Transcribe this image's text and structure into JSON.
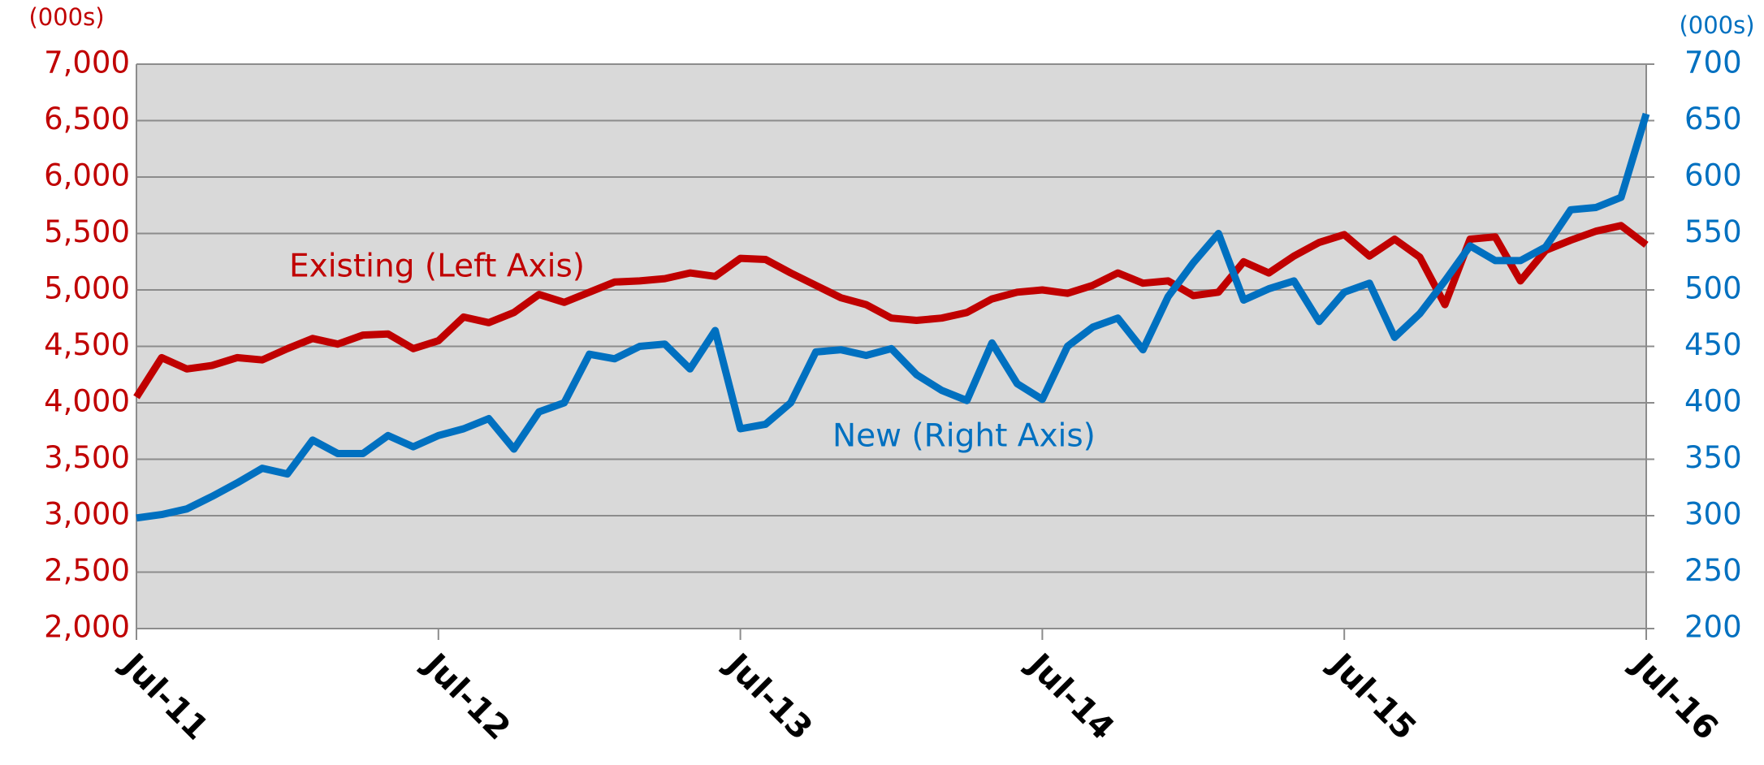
{
  "chart_data": {
    "type": "line",
    "y_unit_label": "(000s)",
    "y2_unit_label": "(000s)",
    "categories": [
      "Jul-11",
      null,
      null,
      null,
      null,
      null,
      null,
      null,
      null,
      null,
      null,
      null,
      "Jul-12",
      null,
      null,
      null,
      null,
      null,
      null,
      null,
      null,
      null,
      null,
      null,
      "Jul-13",
      null,
      null,
      null,
      null,
      null,
      null,
      null,
      null,
      null,
      null,
      null,
      "Jul-14",
      null,
      null,
      null,
      null,
      null,
      null,
      null,
      null,
      null,
      null,
      null,
      "Jul-15",
      null,
      null,
      null,
      null,
      null,
      null,
      null,
      null,
      null,
      null,
      null,
      "Jul-16"
    ],
    "series": [
      {
        "name": "Existing (Left Axis)",
        "color": "#c00000",
        "axis": "y",
        "values": [
          4050,
          4400,
          4300,
          4330,
          4400,
          4380,
          4480,
          4570,
          4520,
          4600,
          4610,
          4480,
          4550,
          4760,
          4710,
          4800,
          4960,
          4890,
          4980,
          5070,
          5080,
          5100,
          5150,
          5120,
          5280,
          5270,
          5150,
          5040,
          4930,
          4870,
          4750,
          4730,
          4750,
          4800,
          4920,
          4980,
          5000,
          4970,
          5040,
          5150,
          5060,
          5080,
          4950,
          4980,
          5250,
          5150,
          5300,
          5420,
          5490,
          5300,
          5450,
          5290,
          4870,
          5450,
          5470,
          5080,
          5350,
          5440,
          5520,
          5570,
          5400
        ]
      },
      {
        "name": "New (Right Axis)",
        "color": "#0070c0",
        "axis": "y2",
        "values": [
          298,
          301,
          306,
          317,
          329,
          342,
          337,
          367,
          355,
          355,
          371,
          361,
          371,
          377,
          386,
          359,
          392,
          400,
          443,
          439,
          450,
          452,
          430,
          464,
          377,
          381,
          400,
          445,
          447,
          442,
          448,
          425,
          411,
          402,
          453,
          417,
          403,
          450,
          467,
          475,
          447,
          494,
          524,
          550,
          491,
          501,
          508,
          472,
          498,
          506,
          458,
          479,
          508,
          539,
          526,
          526,
          538,
          571,
          573,
          582,
          656
        ]
      }
    ],
    "ylim": [
      2000,
      7000
    ],
    "yticks": [
      {
        "value": 2000,
        "label": "2,000"
      },
      {
        "value": 2500,
        "label": "2,500"
      },
      {
        "value": 3000,
        "label": "3,000"
      },
      {
        "value": 3500,
        "label": "3,500"
      },
      {
        "value": 4000,
        "label": "4,000"
      },
      {
        "value": 4500,
        "label": "4,500"
      },
      {
        "value": 5000,
        "label": "5,000"
      },
      {
        "value": 5500,
        "label": "5,500"
      },
      {
        "value": 6000,
        "label": "6,000"
      },
      {
        "value": 6500,
        "label": "6,500"
      },
      {
        "value": 7000,
        "label": "7,000"
      }
    ],
    "y2lim": [
      200,
      700
    ],
    "y2ticks": [
      200,
      250,
      300,
      350,
      400,
      450,
      500,
      550,
      600,
      650,
      700
    ],
    "grid": true,
    "plot_background": "#d9d9d9"
  }
}
